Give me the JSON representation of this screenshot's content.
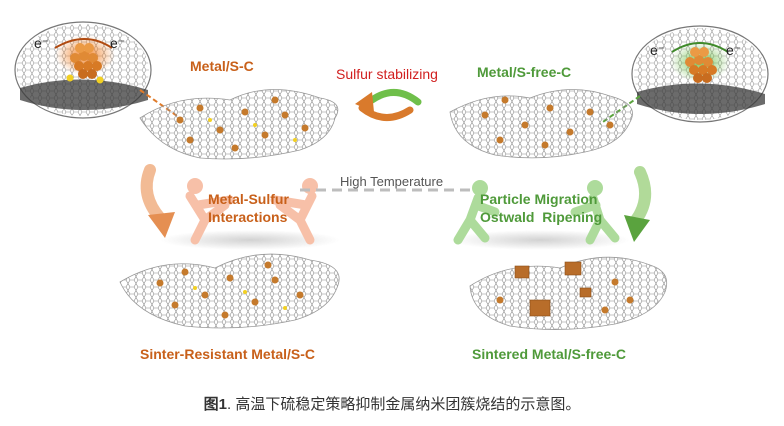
{
  "labels": {
    "metal_s_c": "Metal/S-C",
    "metal_s_free_c": "Metal/S-free-C",
    "sulfur_stabilizing": "Sulfur stabilizing",
    "high_temperature": "High Temperature",
    "metal_sulfur_line1": "Metal-Sulfur",
    "metal_sulfur_line2": "Interactions",
    "particle_migration_line1": "Particle Migration",
    "particle_migration_line2": "Ostwald  Ripening",
    "sinter_resistant": "Sinter-Resistant Metal/S-C",
    "sintered": "Sintered Metal/S-free-C",
    "electron_left_1": "e⁻",
    "electron_left_2": "e⁻",
    "electron_right_1": "e⁻",
    "electron_right_2": "e⁻"
  },
  "caption": {
    "fig_label": "图1",
    "text": ". 高温下硫稳定策略抑制金属纳米团簇烧结的示意图。"
  },
  "colors": {
    "orange": "#c8601a",
    "green": "#4f9a3a",
    "red": "#d11f1f",
    "sheet": "#9a9a9a",
    "particle": "#c57a2c"
  }
}
